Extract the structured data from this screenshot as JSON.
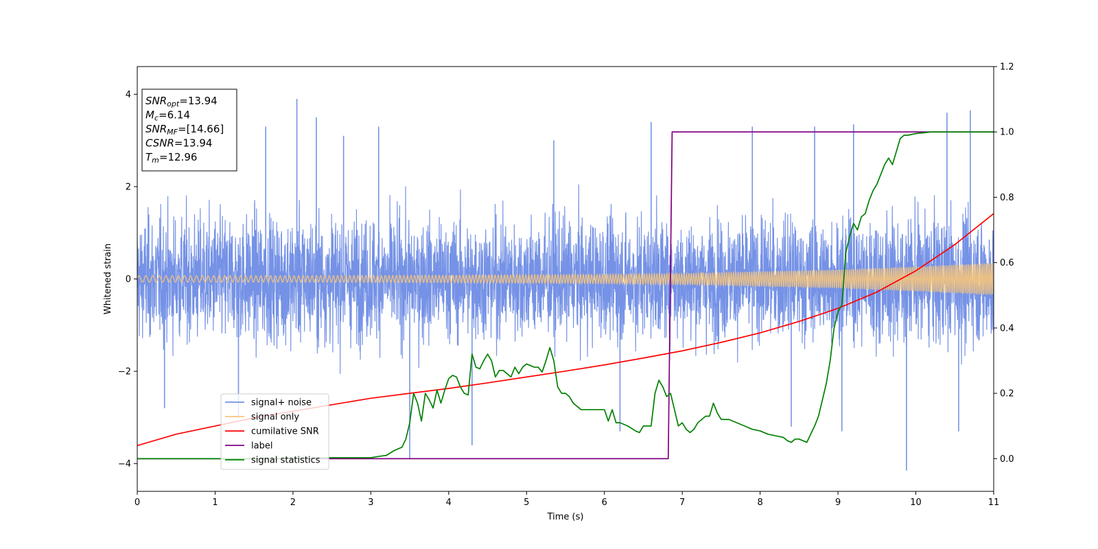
{
  "chart_data": {
    "type": "line",
    "xlabel": "Time (s)",
    "ylabel": "Whitened strain",
    "xlim": [
      0,
      11
    ],
    "ylim": [
      -4.6,
      4.6
    ],
    "y2lim": [
      -0.1,
      1.2
    ],
    "x_ticks": [
      0,
      1,
      2,
      3,
      4,
      5,
      6,
      7,
      8,
      9,
      10,
      11
    ],
    "y_ticks": [
      -4,
      -2,
      0,
      2,
      4
    ],
    "y_tick_labels": [
      "−4",
      "−2",
      "0",
      "2",
      "4"
    ],
    "y2_ticks": [
      0.0,
      0.2,
      0.4,
      0.6,
      0.8,
      1.0,
      1.2
    ],
    "y2_tick_labels": [
      "0.0",
      "0.2",
      "0.4",
      "0.6",
      "0.8",
      "1.0",
      "1.2"
    ],
    "grid": false,
    "legend_position": "lower-left",
    "stats_box": {
      "position": "upper-left",
      "lines": [
        {
          "base": "SNR",
          "sub": "opt",
          "value": "=13.94"
        },
        {
          "base": "M",
          "sub": "c",
          "value": "=6.14"
        },
        {
          "base": "SNR",
          "sub": "MF",
          "value": "=[14.66]"
        },
        {
          "base": "CSNR",
          "sub": "",
          "value": "=13.94"
        },
        {
          "base": "T",
          "sub": "m",
          "value": "=12.96"
        }
      ]
    },
    "series": [
      {
        "name": "signal+ noise",
        "axis": "left",
        "color": "#7592e6",
        "kind": "noise_band",
        "envelope_x": [
          0,
          1,
          2,
          3,
          4,
          5,
          6,
          7,
          8,
          9,
          10,
          11
        ],
        "envelope_upper": [
          2.0,
          2.1,
          2.1,
          2.0,
          2.0,
          2.0,
          2.0,
          2.0,
          2.0,
          2.0,
          2.1,
          2.2
        ],
        "envelope_lower": [
          -2.0,
          -2.1,
          -2.1,
          -2.0,
          -2.0,
          -2.0,
          -2.0,
          -2.0,
          -2.0,
          -2.0,
          -2.1,
          -2.2
        ],
        "spikes": [
          {
            "x": 1.65,
            "y": 3.3
          },
          {
            "x": 2.05,
            "y": 3.9
          },
          {
            "x": 2.3,
            "y": 3.5
          },
          {
            "x": 2.65,
            "y": 3.1
          },
          {
            "x": 3.1,
            "y": 3.3
          },
          {
            "x": 5.35,
            "y": 3.0
          },
          {
            "x": 6.6,
            "y": 3.4
          },
          {
            "x": 7.9,
            "y": 3.3
          },
          {
            "x": 8.7,
            "y": 3.3
          },
          {
            "x": 9.2,
            "y": 3.35
          },
          {
            "x": 10.4,
            "y": 3.6
          },
          {
            "x": 10.7,
            "y": 3.65
          },
          {
            "x": 0.35,
            "y": -2.8
          },
          {
            "x": 1.3,
            "y": -3.0
          },
          {
            "x": 3.5,
            "y": -3.9
          },
          {
            "x": 4.3,
            "y": -3.6
          },
          {
            "x": 6.2,
            "y": -3.3
          },
          {
            "x": 8.4,
            "y": -3.2
          },
          {
            "x": 9.05,
            "y": -3.3
          },
          {
            "x": 9.88,
            "y": -4.15
          },
          {
            "x": 10.55,
            "y": -3.3
          }
        ]
      },
      {
        "name": "signal only",
        "axis": "left",
        "color": "#f5c47c",
        "kind": "chirp",
        "amplitude_x": [
          0,
          2,
          4,
          6,
          7,
          8,
          9,
          10,
          11
        ],
        "amplitude": [
          0.07,
          0.07,
          0.08,
          0.1,
          0.12,
          0.16,
          0.2,
          0.27,
          0.35
        ]
      },
      {
        "name": "cumilative SNR",
        "axis": "right",
        "color": "#ff0000",
        "x": [
          0,
          0.5,
          1,
          1.5,
          2,
          2.5,
          3,
          3.5,
          4,
          4.5,
          5,
          5.5,
          6,
          6.5,
          7,
          7.5,
          8,
          8.5,
          9,
          9.5,
          10,
          10.5,
          11
        ],
        "y": [
          0.04,
          0.075,
          0.1,
          0.125,
          0.145,
          0.165,
          0.185,
          0.2,
          0.215,
          0.232,
          0.25,
          0.268,
          0.287,
          0.308,
          0.33,
          0.356,
          0.385,
          0.42,
          0.46,
          0.51,
          0.575,
          0.655,
          0.75
        ]
      },
      {
        "name": "label",
        "axis": "right",
        "color": "#800080",
        "x": [
          0,
          6.82,
          6.87,
          11
        ],
        "y": [
          0,
          0,
          1,
          1
        ]
      },
      {
        "name": "signal statistics",
        "axis": "right",
        "color": "#008000",
        "x": [
          0,
          0.5,
          1,
          1.5,
          2,
          2.5,
          2.8,
          3,
          3.1,
          3.2,
          3.3,
          3.4,
          3.45,
          3.5,
          3.55,
          3.6,
          3.65,
          3.7,
          3.75,
          3.8,
          3.85,
          3.9,
          3.95,
          4.0,
          4.05,
          4.1,
          4.15,
          4.2,
          4.25,
          4.3,
          4.35,
          4.4,
          4.45,
          4.5,
          4.55,
          4.6,
          4.65,
          4.7,
          4.75,
          4.8,
          4.85,
          4.9,
          4.95,
          5.0,
          5.05,
          5.1,
          5.15,
          5.2,
          5.25,
          5.3,
          5.35,
          5.4,
          5.45,
          5.5,
          5.55,
          5.6,
          5.7,
          5.8,
          5.9,
          5.95,
          6.0,
          6.05,
          6.1,
          6.15,
          6.2,
          6.3,
          6.4,
          6.45,
          6.5,
          6.55,
          6.6,
          6.65,
          6.7,
          6.75,
          6.8,
          6.85,
          6.9,
          6.95,
          7.0,
          7.05,
          7.1,
          7.15,
          7.2,
          7.25,
          7.3,
          7.35,
          7.4,
          7.45,
          7.5,
          7.6,
          7.7,
          7.8,
          7.9,
          8.0,
          8.1,
          8.2,
          8.3,
          8.35,
          8.4,
          8.45,
          8.5,
          8.6,
          8.7,
          8.75,
          8.8,
          8.85,
          8.9,
          8.95,
          9.0,
          9.05,
          9.1,
          9.15,
          9.2,
          9.25,
          9.3,
          9.35,
          9.4,
          9.45,
          9.5,
          9.55,
          9.6,
          9.65,
          9.7,
          9.75,
          9.8,
          9.85,
          9.9,
          10.0,
          10.2,
          10.4,
          10.6,
          11
        ],
        "y": [
          0.0,
          0.0,
          0.0,
          0.0,
          0.0,
          0.003,
          0.003,
          0.003,
          0.007,
          0.01,
          0.025,
          0.035,
          0.06,
          0.11,
          0.2,
          0.17,
          0.115,
          0.2,
          0.18,
          0.155,
          0.21,
          0.17,
          0.21,
          0.245,
          0.255,
          0.25,
          0.22,
          0.2,
          0.195,
          0.32,
          0.28,
          0.275,
          0.3,
          0.32,
          0.3,
          0.25,
          0.27,
          0.27,
          0.26,
          0.25,
          0.28,
          0.26,
          0.28,
          0.29,
          0.285,
          0.28,
          0.28,
          0.265,
          0.3,
          0.34,
          0.3,
          0.22,
          0.2,
          0.2,
          0.19,
          0.17,
          0.15,
          0.15,
          0.15,
          0.15,
          0.15,
          0.115,
          0.15,
          0.11,
          0.11,
          0.1,
          0.085,
          0.08,
          0.1,
          0.1,
          0.1,
          0.2,
          0.24,
          0.22,
          0.19,
          0.2,
          0.15,
          0.1,
          0.11,
          0.09,
          0.08,
          0.09,
          0.11,
          0.12,
          0.13,
          0.13,
          0.17,
          0.14,
          0.12,
          0.12,
          0.11,
          0.1,
          0.09,
          0.085,
          0.075,
          0.07,
          0.065,
          0.055,
          0.05,
          0.06,
          0.06,
          0.05,
          0.1,
          0.13,
          0.18,
          0.23,
          0.3,
          0.4,
          0.45,
          0.47,
          0.63,
          0.68,
          0.72,
          0.7,
          0.74,
          0.75,
          0.79,
          0.82,
          0.84,
          0.87,
          0.9,
          0.92,
          0.9,
          0.94,
          0.98,
          0.99,
          0.99,
          0.995,
          1.0,
          1.0,
          1.0,
          1.0
        ]
      }
    ]
  }
}
